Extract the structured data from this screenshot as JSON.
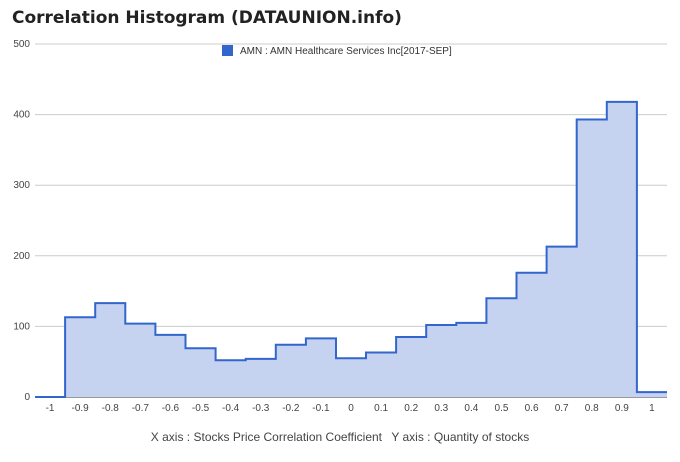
{
  "chart_data": {
    "type": "area",
    "title": "Correlation Histogram (DATAUNION.info)",
    "xlabel": "X axis : Stocks Price Correlation Coefficient",
    "ylabel": "Y axis : Quantity of stocks",
    "legend": {
      "label": "AMN : AMN Healthcare Services Inc[2017-SEP]",
      "position": "top-center"
    },
    "colors": {
      "line": "#3366cc",
      "fill": "#c5d2f0",
      "grid": "#cccccc"
    },
    "xlim": [
      -1.05,
      1.05
    ],
    "ylim": [
      0,
      500
    ],
    "x_ticks": [
      "-1",
      "-0.9",
      "-0.8",
      "-0.7",
      "-0.6",
      "-0.5",
      "-0.4",
      "-0.3",
      "-0.2",
      "-0.1",
      "0",
      "0.1",
      "0.2",
      "0.3",
      "0.4",
      "0.5",
      "0.6",
      "0.7",
      "0.8",
      "0.9",
      "1"
    ],
    "y_ticks": [
      "0",
      "100",
      "200",
      "300",
      "400",
      "500"
    ],
    "x": [
      -1,
      -0.9,
      -0.8,
      -0.7,
      -0.6,
      -0.5,
      -0.4,
      -0.3,
      -0.2,
      -0.1,
      0,
      0.1,
      0.2,
      0.3,
      0.4,
      0.5,
      0.6,
      0.7,
      0.8,
      0.9,
      1
    ],
    "values": [
      0,
      113,
      133,
      104,
      88,
      69,
      52,
      54,
      74,
      83,
      55,
      63,
      85,
      102,
      105,
      140,
      176,
      213,
      393,
      418,
      7
    ],
    "grid": true
  }
}
